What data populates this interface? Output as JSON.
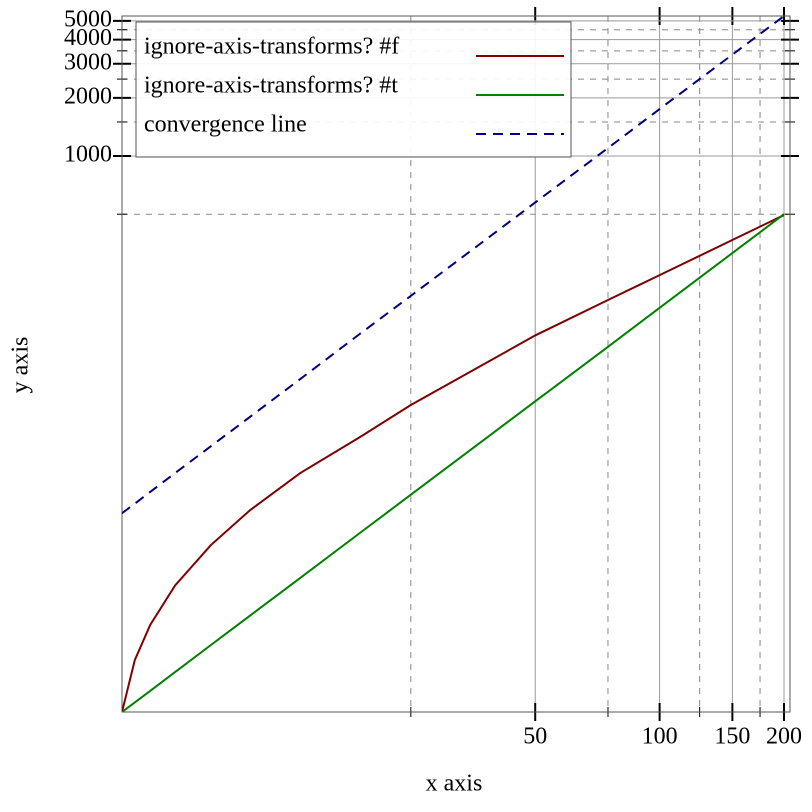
{
  "chart_data": {
    "type": "line",
    "x_label": "x axis",
    "y_label": "y axis",
    "x": [
      5,
      5.37,
      5.85,
      6.72,
      8.2,
      10.2,
      13.5,
      18.8,
      25,
      50,
      75,
      100,
      200
    ],
    "series": [
      {
        "name": "ignore-axis-transforms? #f",
        "color": "#800000",
        "style": "solid",
        "values": [
          1.33,
          2.47,
          3.75,
          6.0,
          9.7,
          14.7,
          22.9,
          35.1,
          51.5,
          118,
          180,
          242,
          495
        ]
      },
      {
        "name": "ignore-axis-transforms? #t",
        "color": "#008000",
        "style": "solid",
        "values": [
          1.33,
          1.49,
          1.71,
          2.14,
          2.95,
          4.19,
          6.57,
          11.2,
          17.7,
          53.8,
          103,
          164,
          500
        ]
      },
      {
        "name": "convergence line",
        "color": "#000080",
        "style": "dashed",
        "values": [
          14.2,
          15.9,
          18.3,
          22.9,
          31.5,
          44.7,
          70.2,
          120,
          189,
          575,
          1100,
          1750,
          5300
        ]
      }
    ],
    "xscale": "log",
    "yscale": "log",
    "xlim": [
      5,
      200
    ],
    "ylim": [
      1.33,
      5300
    ],
    "xticks": [
      50,
      100,
      150,
      200
    ],
    "yticks": [
      1000,
      2000,
      3000,
      4000,
      5000
    ],
    "xminorticks": [
      25,
      75,
      125,
      175
    ],
    "yminorticks": [
      500,
      1500,
      2500,
      3500,
      4500
    ],
    "grid": true,
    "legend": "top-left"
  }
}
